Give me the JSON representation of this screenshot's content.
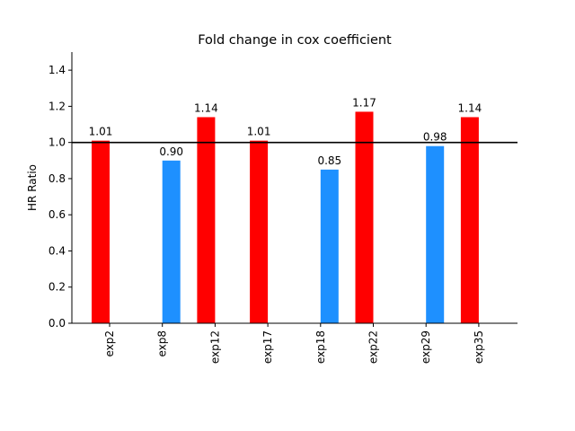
{
  "chart_data": {
    "type": "bar",
    "title": "Fold change in cox coefficient",
    "xlabel": "",
    "ylabel": "HR Ratio",
    "ylim": [
      0,
      1.5
    ],
    "yticks": [
      0.0,
      0.2,
      0.4,
      0.6,
      0.8,
      1.0,
      1.2,
      1.4
    ],
    "ytick_labels": [
      "0.0",
      "0.2",
      "0.4",
      "0.6",
      "0.8",
      "1.0",
      "1.2",
      "1.4"
    ],
    "reference_line": 1.0,
    "grid": false,
    "colors": {
      "above": "#ff0000",
      "below": "#1e90ff",
      "reference": "#000000"
    },
    "bars": [
      {
        "category": "exp2",
        "value": 1.01,
        "label": "1.01",
        "color": "#ff0000",
        "offset": "left"
      },
      {
        "category": "exp8",
        "value": 0.9,
        "label": "0.90",
        "color": "#1e90ff",
        "offset": "right"
      },
      {
        "category": "exp12",
        "value": 1.14,
        "label": "1.14",
        "color": "#ff0000",
        "offset": "left"
      },
      {
        "category": "exp17",
        "value": 1.01,
        "label": "1.01",
        "color": "#ff0000",
        "offset": "left"
      },
      {
        "category": "exp18",
        "value": 0.85,
        "label": "0.85",
        "color": "#1e90ff",
        "offset": "right"
      },
      {
        "category": "exp22",
        "value": 1.17,
        "label": "1.17",
        "color": "#ff0000",
        "offset": "left"
      },
      {
        "category": "exp29",
        "value": 0.98,
        "label": "0.98",
        "color": "#1e90ff",
        "offset": "right"
      },
      {
        "category": "exp35",
        "value": 1.14,
        "label": "1.14",
        "color": "#ff0000",
        "offset": "left"
      }
    ]
  }
}
